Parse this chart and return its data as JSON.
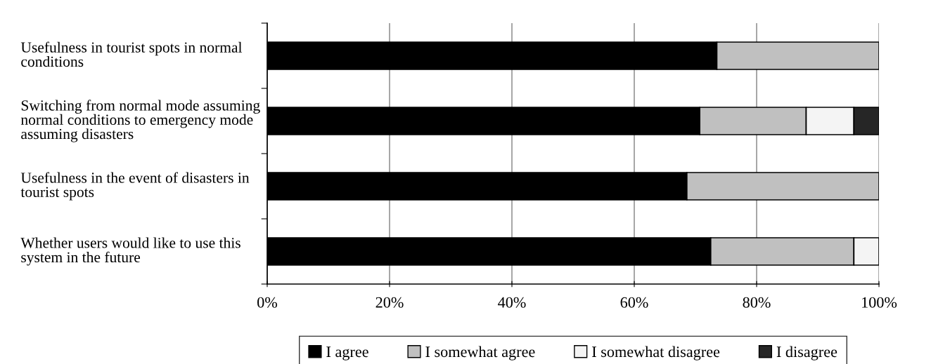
{
  "chart_data": {
    "type": "bar",
    "orientation": "horizontal",
    "stacked": true,
    "categories": [
      "Usefulness in tourist spots in normal conditions",
      "Switching from normal mode assuming normal conditions to emergency mode assuming disasters",
      "Usefulness in the event of disasters in tourist spots",
      "Whether users would like to use this system in the future"
    ],
    "series": [
      {
        "name": "I agree",
        "color": "#000000",
        "values": [
          73.5,
          70.7,
          68.6,
          72.5
        ]
      },
      {
        "name": "I somewhat agree",
        "color": "#c0c0c0",
        "values": [
          26.5,
          17.4,
          31.4,
          23.4
        ]
      },
      {
        "name": "I somewhat disagree",
        "color": "#f4f4f4",
        "values": [
          0,
          7.8,
          0,
          4.1
        ]
      },
      {
        "name": "I disagree",
        "color": "#262626",
        "values": [
          0,
          4.1,
          0,
          0
        ]
      }
    ],
    "xlim": [
      0,
      100
    ],
    "xticks": [
      {
        "value": 0,
        "label": "0%"
      },
      {
        "value": 20,
        "label": "20%"
      },
      {
        "value": 40,
        "label": "40%"
      },
      {
        "value": 60,
        "label": "60%"
      },
      {
        "value": 80,
        "label": "80%"
      },
      {
        "value": 100,
        "label": "100%"
      }
    ],
    "grid": "x",
    "legend": "bottom"
  }
}
